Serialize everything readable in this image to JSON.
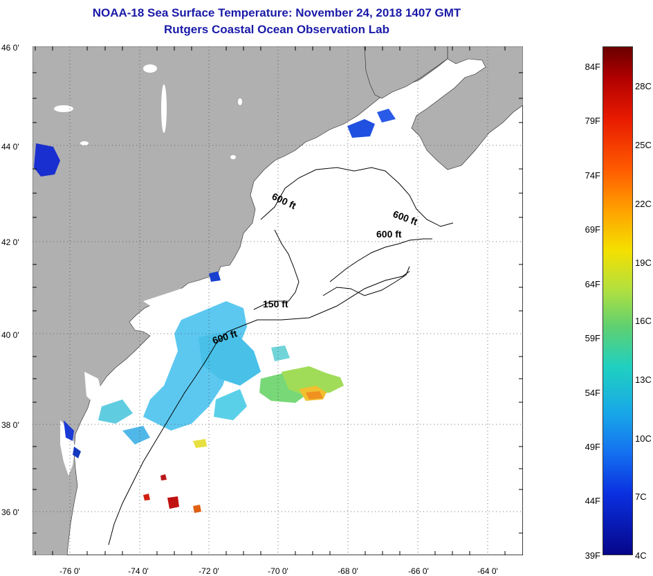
{
  "header": {
    "title": "NOAA-18 Sea Surface Temperature:  November 24, 2018 1407 GMT",
    "subtitle": "Rutgers Coastal Ocean Observation Lab"
  },
  "map": {
    "lat_labels": [
      "46 0'",
      "44 0'",
      "42 0'",
      "40 0'",
      "38 0'",
      "36 0'"
    ],
    "lon_labels": [
      "-76 0'",
      "-74 0'",
      "-72 0'",
      "-70 0'",
      "-68 0'",
      "-66 0'",
      "-64 0'"
    ],
    "contour_labels": [
      "600 ft",
      "600 ft",
      "600 ft",
      "150 ft",
      "600 ft"
    ],
    "colors": {
      "land": "#b0b0b0",
      "water": "#ffffff",
      "contour": "#000000"
    }
  },
  "colorbar": {
    "fahrenheit": [
      "84F",
      "79F",
      "74F",
      "69F",
      "64F",
      "59F",
      "54F",
      "49F",
      "44F",
      "39F"
    ],
    "celsius": [
      "28C",
      "25C",
      "22C",
      "19C",
      "16C",
      "13C",
      "10C",
      "7C",
      "4C"
    ]
  }
}
